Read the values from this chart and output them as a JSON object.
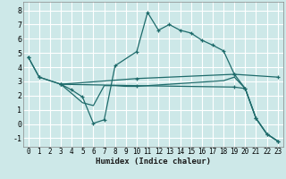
{
  "xlabel": "Humidex (Indice chaleur)",
  "background_color": "#cde8e8",
  "grid_color": "#ffffff",
  "line_color": "#1e6b6b",
  "xlim": [
    -0.5,
    23.5
  ],
  "ylim": [
    -1.6,
    8.6
  ],
  "xticks": [
    0,
    1,
    2,
    3,
    4,
    5,
    6,
    7,
    8,
    9,
    10,
    11,
    12,
    13,
    14,
    15,
    16,
    17,
    18,
    19,
    20,
    21,
    22,
    23
  ],
  "yticks": [
    -1,
    0,
    1,
    2,
    3,
    4,
    5,
    6,
    7,
    8
  ],
  "line1": {
    "x": [
      0,
      1,
      3,
      10,
      19,
      23
    ],
    "y": [
      4.7,
      3.3,
      2.8,
      3.2,
      3.5,
      3.3
    ],
    "marker": true
  },
  "line2": {
    "x": [
      0,
      1,
      3,
      10,
      19,
      20,
      21,
      22,
      23
    ],
    "y": [
      4.7,
      3.3,
      2.8,
      2.7,
      2.6,
      2.5,
      0.4,
      -0.7,
      -1.2
    ],
    "marker": true
  },
  "line3": {
    "x": [
      3,
      4,
      5,
      6,
      7,
      8,
      10,
      11,
      12,
      13,
      14,
      15,
      16,
      17,
      18,
      19,
      20,
      21,
      22,
      23
    ],
    "y": [
      2.8,
      2.4,
      1.9,
      0.05,
      0.3,
      4.1,
      5.1,
      7.85,
      6.6,
      7.0,
      6.6,
      6.4,
      5.9,
      5.55,
      5.15,
      3.5,
      2.5,
      0.4,
      -0.7,
      -1.2
    ],
    "marker": true
  },
  "line4": {
    "x": [
      3,
      5,
      6,
      7,
      8,
      9,
      10,
      11,
      12,
      13,
      14,
      15,
      16,
      17,
      18,
      19,
      20,
      21,
      22,
      23
    ],
    "y": [
      2.8,
      1.5,
      1.3,
      2.7,
      2.7,
      2.65,
      2.65,
      2.7,
      2.75,
      2.8,
      2.85,
      2.9,
      2.95,
      3.0,
      3.05,
      3.3,
      2.5,
      0.4,
      -0.7,
      -1.2
    ],
    "marker": false
  }
}
